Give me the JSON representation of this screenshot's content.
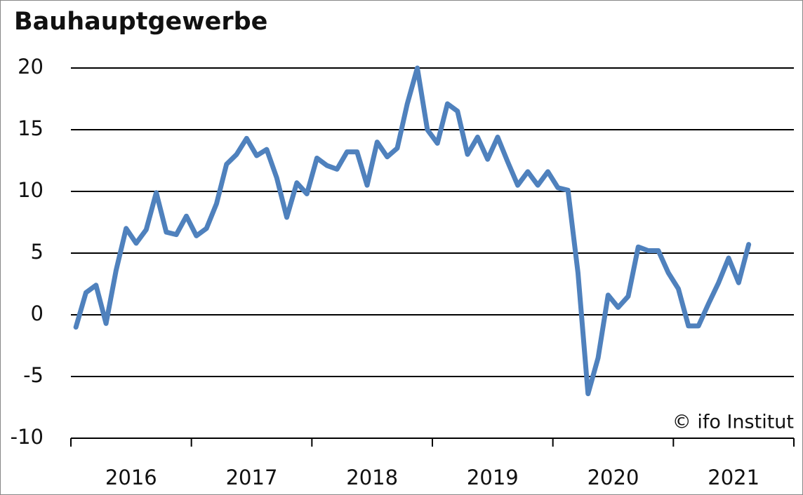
{
  "chart_data": {
    "type": "line",
    "title": "Bauhauptgewerbe",
    "source": "© ifo Institut",
    "x": [
      "2016-01",
      "2016-02",
      "2016-03",
      "2016-04",
      "2016-05",
      "2016-06",
      "2016-07",
      "2016-08",
      "2016-09",
      "2016-10",
      "2016-11",
      "2016-12",
      "2017-01",
      "2017-02",
      "2017-03",
      "2017-04",
      "2017-05",
      "2017-06",
      "2017-07",
      "2017-08",
      "2017-09",
      "2017-10",
      "2017-11",
      "2017-12",
      "2018-01",
      "2018-02",
      "2018-03",
      "2018-04",
      "2018-05",
      "2018-06",
      "2018-07",
      "2018-08",
      "2018-09",
      "2018-10",
      "2018-11",
      "2018-12",
      "2019-01",
      "2019-02",
      "2019-03",
      "2019-04",
      "2019-05",
      "2019-06",
      "2019-07",
      "2019-08",
      "2019-09",
      "2019-10",
      "2019-11",
      "2019-12",
      "2020-01",
      "2020-02",
      "2020-03",
      "2020-04",
      "2020-05",
      "2020-06",
      "2020-07",
      "2020-08",
      "2020-09",
      "2020-10",
      "2020-11",
      "2020-12",
      "2021-01",
      "2021-02",
      "2021-03",
      "2021-04",
      "2021-05",
      "2021-06",
      "2021-07",
      "2021-08"
    ],
    "values": [
      -1.0,
      1.8,
      2.4,
      -0.7,
      3.6,
      7.0,
      5.8,
      6.9,
      9.9,
      6.7,
      6.5,
      8.0,
      6.4,
      7.0,
      9.0,
      12.2,
      13.0,
      14.3,
      12.9,
      13.4,
      11.1,
      7.9,
      10.7,
      9.8,
      12.7,
      12.1,
      11.8,
      13.2,
      13.2,
      10.5,
      14.0,
      12.8,
      13.5,
      17.1,
      20.0,
      15.0,
      13.9,
      17.1,
      16.5,
      13.0,
      14.4,
      12.6,
      14.4,
      12.4,
      10.5,
      11.6,
      10.5,
      11.6,
      10.3,
      10.1,
      3.4,
      -6.4,
      -3.5,
      1.6,
      0.6,
      1.5,
      5.5,
      5.2,
      5.2,
      3.4,
      2.1,
      -0.9,
      -0.9,
      0.9,
      2.6,
      4.6,
      2.6,
      5.7
    ],
    "color": "#4f81bd",
    "xtick_labels": [
      "2016",
      "2017",
      "2018",
      "2019",
      "2020",
      "2021"
    ],
    "ylim": [
      -10,
      20
    ],
    "yticks": [
      -10,
      -5,
      0,
      5,
      10,
      15,
      20
    ],
    "grid": true
  }
}
